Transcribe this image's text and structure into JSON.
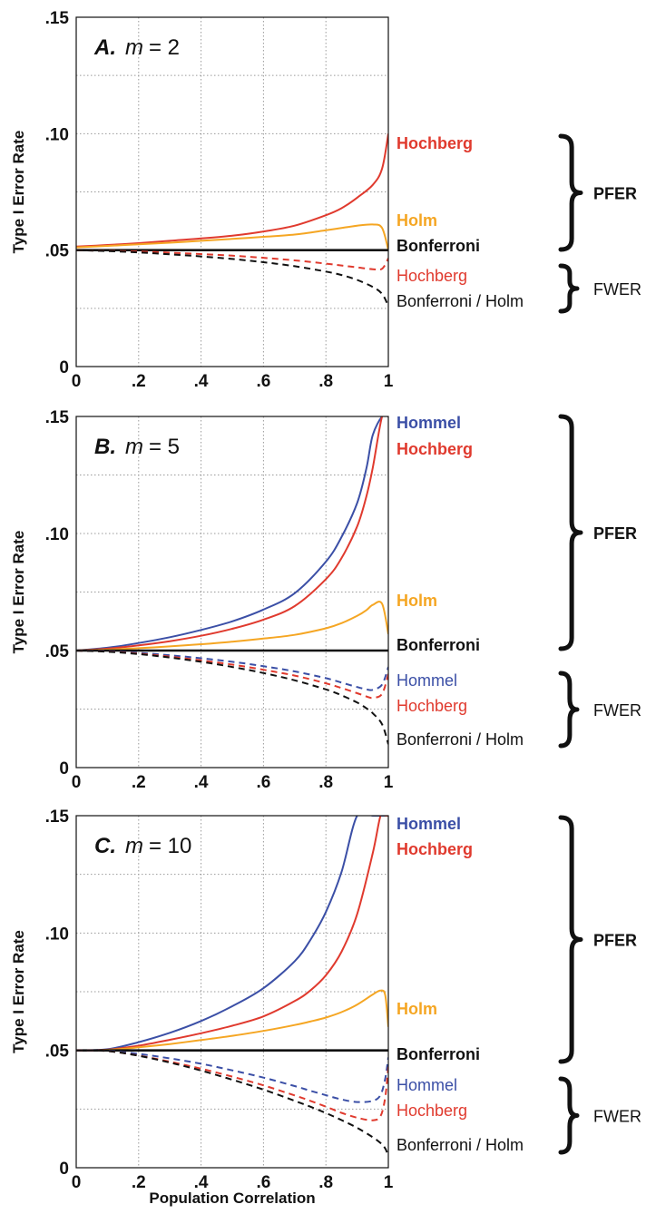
{
  "figure": {
    "xlabel": "Population Correlation",
    "ylabel": "Type I Error Rate"
  },
  "chart_data": [
    {
      "type": "line",
      "panel_letter": "A.",
      "m_label": "m",
      "m_value": "= 2",
      "xlabel": "",
      "ylabel": "Type I Error Rate",
      "xlim": [
        0,
        1
      ],
      "ylim": [
        0,
        0.15
      ],
      "x_ticks": [
        "0",
        ".2",
        ".4",
        ".6",
        ".8",
        "1"
      ],
      "y_ticks": [
        "0",
        ".05",
        ".10",
        ".15"
      ],
      "grid": true,
      "x": [
        0,
        0.1,
        0.2,
        0.3,
        0.4,
        0.5,
        0.6,
        0.7,
        0.8,
        0.85,
        0.9,
        0.95,
        0.98,
        1.0
      ],
      "series": [
        {
          "name": "Hochberg",
          "metric": "PFER",
          "color": "#e03a2e",
          "dashed": false,
          "values": [
            0.0515,
            0.0522,
            0.053,
            0.054,
            0.055,
            0.0562,
            0.058,
            0.0605,
            0.065,
            0.068,
            0.0725,
            0.078,
            0.085,
            0.1
          ]
        },
        {
          "name": "Holm",
          "metric": "PFER",
          "color": "#f5a623",
          "dashed": false,
          "values": [
            0.0512,
            0.0518,
            0.0525,
            0.0532,
            0.054,
            0.0548,
            0.0557,
            0.0567,
            0.0585,
            0.0595,
            0.0605,
            0.061,
            0.0595,
            0.05
          ]
        },
        {
          "name": "Bonferroni",
          "metric": "PFER",
          "color": "#111111",
          "dashed": false,
          "values": [
            0.05,
            0.05,
            0.05,
            0.05,
            0.05,
            0.05,
            0.05,
            0.05,
            0.05,
            0.05,
            0.05,
            0.05,
            0.05,
            0.05
          ]
        },
        {
          "name": "Hochberg",
          "metric": "FWER",
          "color": "#e03a2e",
          "dashed": true,
          "values": [
            0.05,
            0.0497,
            0.0494,
            0.0489,
            0.0483,
            0.0476,
            0.0467,
            0.0456,
            0.0442,
            0.0434,
            0.0426,
            0.0418,
            0.042,
            0.0465
          ]
        },
        {
          "name": "Bonferroni / Holm",
          "metric": "FWER",
          "color": "#111111",
          "dashed": true,
          "values": [
            0.05,
            0.0496,
            0.049,
            0.0482,
            0.0473,
            0.0462,
            0.0448,
            0.0431,
            0.0408,
            0.0393,
            0.0372,
            0.0342,
            0.0312,
            0.026
          ]
        }
      ]
    },
    {
      "type": "line",
      "panel_letter": "B.",
      "m_label": "m",
      "m_value": "= 5",
      "xlabel": "",
      "ylabel": "Type I Error Rate",
      "xlim": [
        0,
        1
      ],
      "ylim": [
        0,
        0.15
      ],
      "x_ticks": [
        "0",
        ".2",
        ".4",
        ".6",
        ".8",
        "1"
      ],
      "y_ticks": [
        "0",
        ".05",
        ".10",
        ".15"
      ],
      "grid": true,
      "x": [
        0,
        0.1,
        0.2,
        0.3,
        0.4,
        0.5,
        0.6,
        0.7,
        0.8,
        0.85,
        0.9,
        0.93,
        0.95,
        0.98,
        1.0
      ],
      "series": [
        {
          "name": "Hommel",
          "metric": "PFER",
          "color": "#3b4fa6",
          "dashed": false,
          "values": [
            0.05,
            0.0512,
            0.0532,
            0.0557,
            0.0588,
            0.0625,
            0.0675,
            0.0745,
            0.088,
            0.0985,
            0.113,
            0.128,
            0.142,
            0.15,
            0.15
          ]
        },
        {
          "name": "Hochberg",
          "metric": "PFER",
          "color": "#e03a2e",
          "dashed": false,
          "values": [
            0.05,
            0.0508,
            0.0522,
            0.054,
            0.0563,
            0.0593,
            0.0632,
            0.069,
            0.0805,
            0.0895,
            0.103,
            0.116,
            0.128,
            0.15,
            0.15
          ]
        },
        {
          "name": "Holm",
          "metric": "PFER",
          "color": "#f5a623",
          "dashed": false,
          "values": [
            0.05,
            0.0504,
            0.051,
            0.0518,
            0.0527,
            0.0538,
            0.0551,
            0.0567,
            0.0595,
            0.0617,
            0.0648,
            0.0673,
            0.0695,
            0.07,
            0.057
          ]
        },
        {
          "name": "Bonferroni",
          "metric": "PFER",
          "color": "#111111",
          "dashed": false,
          "values": [
            0.05,
            0.05,
            0.05,
            0.05,
            0.05,
            0.05,
            0.05,
            0.05,
            0.05,
            0.05,
            0.05,
            0.05,
            0.05,
            0.05,
            0.05
          ]
        },
        {
          "name": "Hommel",
          "metric": "FWER",
          "color": "#3b4fa6",
          "dashed": true,
          "values": [
            0.05,
            0.0497,
            0.049,
            0.048,
            0.0467,
            0.0452,
            0.0433,
            0.0411,
            0.0382,
            0.0363,
            0.0344,
            0.0334,
            0.0332,
            0.0355,
            0.043
          ]
        },
        {
          "name": "Hochberg",
          "metric": "FWER",
          "color": "#e03a2e",
          "dashed": true,
          "values": [
            0.05,
            0.0496,
            0.0487,
            0.0474,
            0.0458,
            0.044,
            0.0418,
            0.0393,
            0.036,
            0.034,
            0.0318,
            0.0304,
            0.0298,
            0.0315,
            0.04
          ]
        },
        {
          "name": "Bonferroni / Holm",
          "metric": "FWER",
          "color": "#111111",
          "dashed": true,
          "values": [
            0.05,
            0.0495,
            0.0485,
            0.047,
            0.0452,
            0.043,
            0.0404,
            0.0373,
            0.0334,
            0.0309,
            0.0278,
            0.0253,
            0.0232,
            0.0185,
            0.01
          ]
        }
      ]
    },
    {
      "type": "line",
      "panel_letter": "C.",
      "m_label": "m",
      "m_value": "= 10",
      "xlabel": "Population Correlation",
      "ylabel": "Type I Error Rate",
      "xlim": [
        0,
        1
      ],
      "ylim": [
        0,
        0.15
      ],
      "x_ticks": [
        "0",
        ".2",
        ".4",
        ".6",
        ".8",
        "1"
      ],
      "y_ticks": [
        "0",
        ".05",
        ".10",
        ".15"
      ],
      "grid": true,
      "x": [
        0,
        0.1,
        0.2,
        0.3,
        0.4,
        0.5,
        0.6,
        0.7,
        0.75,
        0.8,
        0.85,
        0.9,
        0.95,
        0.975,
        0.99,
        1.0
      ],
      "series": [
        {
          "name": "Hommel",
          "metric": "PFER",
          "color": "#3b4fa6",
          "dashed": false,
          "values": [
            0.05,
            0.0505,
            0.0535,
            0.0575,
            0.0625,
            0.0688,
            0.0765,
            0.088,
            0.097,
            0.109,
            0.126,
            0.15,
            0.15,
            0.15,
            0.15,
            0.15
          ]
        },
        {
          "name": "Hochberg",
          "metric": "PFER",
          "color": "#e03a2e",
          "dashed": false,
          "values": [
            0.05,
            0.0503,
            0.052,
            0.0545,
            0.0573,
            0.0605,
            0.0645,
            0.071,
            0.0755,
            0.082,
            0.092,
            0.108,
            0.134,
            0.15,
            0.15,
            0.15
          ]
        },
        {
          "name": "Holm",
          "metric": "PFER",
          "color": "#f5a623",
          "dashed": false,
          "values": [
            0.05,
            0.0502,
            0.0513,
            0.0527,
            0.0544,
            0.0562,
            0.0583,
            0.0608,
            0.0623,
            0.064,
            0.0663,
            0.0695,
            0.0738,
            0.0755,
            0.0735,
            0.06
          ]
        },
        {
          "name": "Bonferroni",
          "metric": "PFER",
          "color": "#111111",
          "dashed": false,
          "values": [
            0.05,
            0.05,
            0.05,
            0.05,
            0.05,
            0.05,
            0.05,
            0.05,
            0.05,
            0.05,
            0.05,
            0.05,
            0.05,
            0.05,
            0.05,
            0.05
          ]
        },
        {
          "name": "Hommel",
          "metric": "FWER",
          "color": "#3b4fa6",
          "dashed": true,
          "values": [
            0.05,
            0.0498,
            0.0485,
            0.0466,
            0.0443,
            0.0415,
            0.0384,
            0.0348,
            0.0328,
            0.0309,
            0.0291,
            0.028,
            0.0285,
            0.031,
            0.038,
            0.047
          ]
        },
        {
          "name": "Hochberg",
          "metric": "FWER",
          "color": "#e03a2e",
          "dashed": true,
          "values": [
            0.05,
            0.0497,
            0.0478,
            0.0452,
            0.0422,
            0.0388,
            0.0351,
            0.0308,
            0.0285,
            0.026,
            0.0234,
            0.0213,
            0.0202,
            0.022,
            0.03,
            0.043
          ]
        },
        {
          "name": "Bonferroni / Holm",
          "metric": "FWER",
          "color": "#111111",
          "dashed": true,
          "values": [
            0.05,
            0.0497,
            0.0477,
            0.0448,
            0.0414,
            0.0375,
            0.0333,
            0.0285,
            0.026,
            0.0233,
            0.0203,
            0.017,
            0.013,
            0.0105,
            0.0082,
            0.005
          ]
        }
      ]
    }
  ],
  "side_labels": [
    {
      "pfer_items": [
        {
          "text": "Hochberg",
          "color": "#e03a2e"
        },
        {
          "text": "Holm",
          "color": "#f5a623"
        },
        {
          "text": "Bonferroni",
          "color": "#111111"
        }
      ],
      "fwer_items": [
        {
          "text": "Hochberg",
          "color": "#e03a2e"
        },
        {
          "text": "Bonferroni / Holm",
          "color": "#111111"
        }
      ],
      "pfer_group": "PFER",
      "fwer_group": "FWER"
    },
    {
      "pfer_items": [
        {
          "text": "Hommel",
          "color": "#3b4fa6"
        },
        {
          "text": "Hochberg",
          "color": "#e03a2e"
        },
        {
          "text": "Holm",
          "color": "#f5a623"
        },
        {
          "text": "Bonferroni",
          "color": "#111111"
        }
      ],
      "fwer_items": [
        {
          "text": "Hommel",
          "color": "#3b4fa6"
        },
        {
          "text": "Hochberg",
          "color": "#e03a2e"
        },
        {
          "text": "Bonferroni / Holm",
          "color": "#111111"
        }
      ],
      "pfer_group": "PFER",
      "fwer_group": "FWER"
    },
    {
      "pfer_items": [
        {
          "text": "Hommel",
          "color": "#3b4fa6"
        },
        {
          "text": "Hochberg",
          "color": "#e03a2e"
        },
        {
          "text": "Holm",
          "color": "#f5a623"
        },
        {
          "text": "Bonferroni",
          "color": "#111111"
        }
      ],
      "fwer_items": [
        {
          "text": "Hommel",
          "color": "#3b4fa6"
        },
        {
          "text": "Hochberg",
          "color": "#e03a2e"
        },
        {
          "text": "Bonferroni / Holm",
          "color": "#111111"
        }
      ],
      "pfer_group": "PFER",
      "fwer_group": "FWER"
    }
  ]
}
